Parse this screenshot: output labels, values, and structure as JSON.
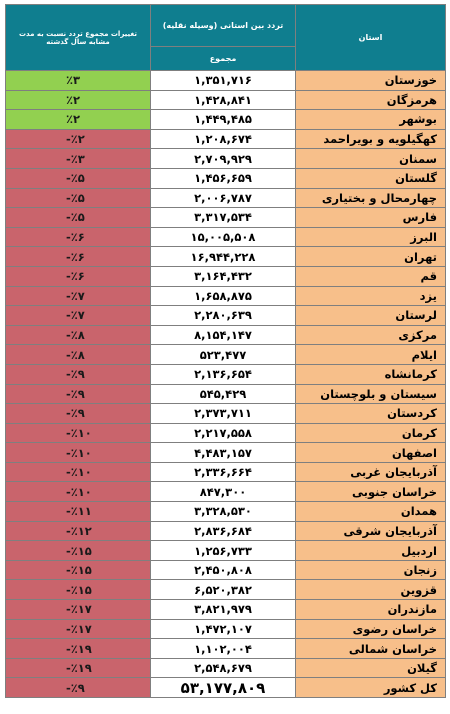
{
  "header": {
    "change_label": "تغییرات مجموع تردد نسبت به مدت مشابه سال گذشته",
    "traffic_label": "تردد بین استانی (وسیله نقلیه)",
    "total_label": "مجموع",
    "province_label": "استان"
  },
  "rows": [
    {
      "province": "خوزستان",
      "total": "۱,۳۵۱,۷۱۶",
      "change": "٪۳",
      "trend": "pos"
    },
    {
      "province": "هرمزگان",
      "total": "۱,۴۲۸,۸۴۱",
      "change": "٪۲",
      "trend": "pos"
    },
    {
      "province": "بوشهر",
      "total": "۱,۴۴۹,۴۸۵",
      "change": "٪۲",
      "trend": "pos"
    },
    {
      "province": "کهگیلویه و بویراحمد",
      "total": "۱,۲۰۸,۶۷۴",
      "change": "-٪۲",
      "trend": "neg"
    },
    {
      "province": "سمنان",
      "total": "۲,۷۰۹,۹۲۹",
      "change": "-٪۳",
      "trend": "neg"
    },
    {
      "province": "گلستان",
      "total": "۱,۴۵۶,۶۵۹",
      "change": "-٪۵",
      "trend": "neg"
    },
    {
      "province": "چهارمحال و بختیاری",
      "total": "۲,۰۰۶,۷۸۷",
      "change": "-٪۵",
      "trend": "neg"
    },
    {
      "province": "فارس",
      "total": "۳,۳۱۷,۵۳۴",
      "change": "-٪۵",
      "trend": "neg"
    },
    {
      "province": "البرز",
      "total": "۱۵,۰۰۵,۵۰۸",
      "change": "-٪۶",
      "trend": "neg"
    },
    {
      "province": "تهران",
      "total": "۱۶,۹۴۴,۲۲۸",
      "change": "-٪۶",
      "trend": "neg"
    },
    {
      "province": "قم",
      "total": "۳,۱۶۴,۴۳۲",
      "change": "-٪۶",
      "trend": "neg"
    },
    {
      "province": "یزد",
      "total": "۱,۶۵۸,۸۷۵",
      "change": "-٪۷",
      "trend": "neg"
    },
    {
      "province": "لرستان",
      "total": "۲,۲۸۰,۶۳۹",
      "change": "-٪۷",
      "trend": "neg"
    },
    {
      "province": "مرکزی",
      "total": "۸,۱۵۴,۱۴۷",
      "change": "-٪۸",
      "trend": "neg"
    },
    {
      "province": "ایلام",
      "total": "۵۲۳,۴۷۷",
      "change": "-٪۸",
      "trend": "neg"
    },
    {
      "province": "کرمانشاه",
      "total": "۲,۱۳۶,۶۵۴",
      "change": "-٪۹",
      "trend": "neg"
    },
    {
      "province": "سیستان و بلوچستان",
      "total": "۵۴۵,۴۲۹",
      "change": "-٪۹",
      "trend": "neg"
    },
    {
      "province": "کردستان",
      "total": "۲,۳۷۳,۷۱۱",
      "change": "-٪۹",
      "trend": "neg"
    },
    {
      "province": "کرمان",
      "total": "۲,۲۱۷,۵۵۸",
      "change": "-٪۱۰",
      "trend": "neg"
    },
    {
      "province": "اصفهان",
      "total": "۴,۴۸۳,۱۵۷",
      "change": "-٪۱۰",
      "trend": "neg"
    },
    {
      "province": "آذربایجان غربی",
      "total": "۲,۳۳۶,۶۶۴",
      "change": "-٪۱۰",
      "trend": "neg"
    },
    {
      "province": "خراسان جنوبی",
      "total": "۸۴۷,۳۰۰",
      "change": "-٪۱۰",
      "trend": "neg"
    },
    {
      "province": "همدان",
      "total": "۳,۳۲۸,۵۳۰",
      "change": "-٪۱۱",
      "trend": "neg"
    },
    {
      "province": "آذربایجان شرقی",
      "total": "۲,۸۳۶,۶۸۴",
      "change": "-٪۱۲",
      "trend": "neg"
    },
    {
      "province": "اردبیل",
      "total": "۱,۲۵۶,۷۳۳",
      "change": "-٪۱۵",
      "trend": "neg"
    },
    {
      "province": "زنجان",
      "total": "۲,۴۵۰,۸۰۸",
      "change": "-٪۱۵",
      "trend": "neg"
    },
    {
      "province": "قزوین",
      "total": "۶,۵۲۰,۳۸۲",
      "change": "-٪۱۵",
      "trend": "neg"
    },
    {
      "province": "مازندران",
      "total": "۳,۸۲۱,۹۷۹",
      "change": "-٪۱۷",
      "trend": "neg"
    },
    {
      "province": "خراسان رضوی",
      "total": "۱,۴۷۲,۱۰۷",
      "change": "-٪۱۷",
      "trend": "neg"
    },
    {
      "province": "خراسان شمالی",
      "total": "۱,۱۰۲,۰۰۴",
      "change": "-٪۱۹",
      "trend": "neg"
    },
    {
      "province": "گیلان",
      "total": "۲,۵۴۸,۶۷۹",
      "change": "-٪۱۹",
      "trend": "neg"
    },
    {
      "province": "کل کشور",
      "total": "۵۳,۱۷۷,۸۰۹",
      "change": "-٪۹",
      "trend": "neg",
      "is_sum": true
    }
  ]
}
